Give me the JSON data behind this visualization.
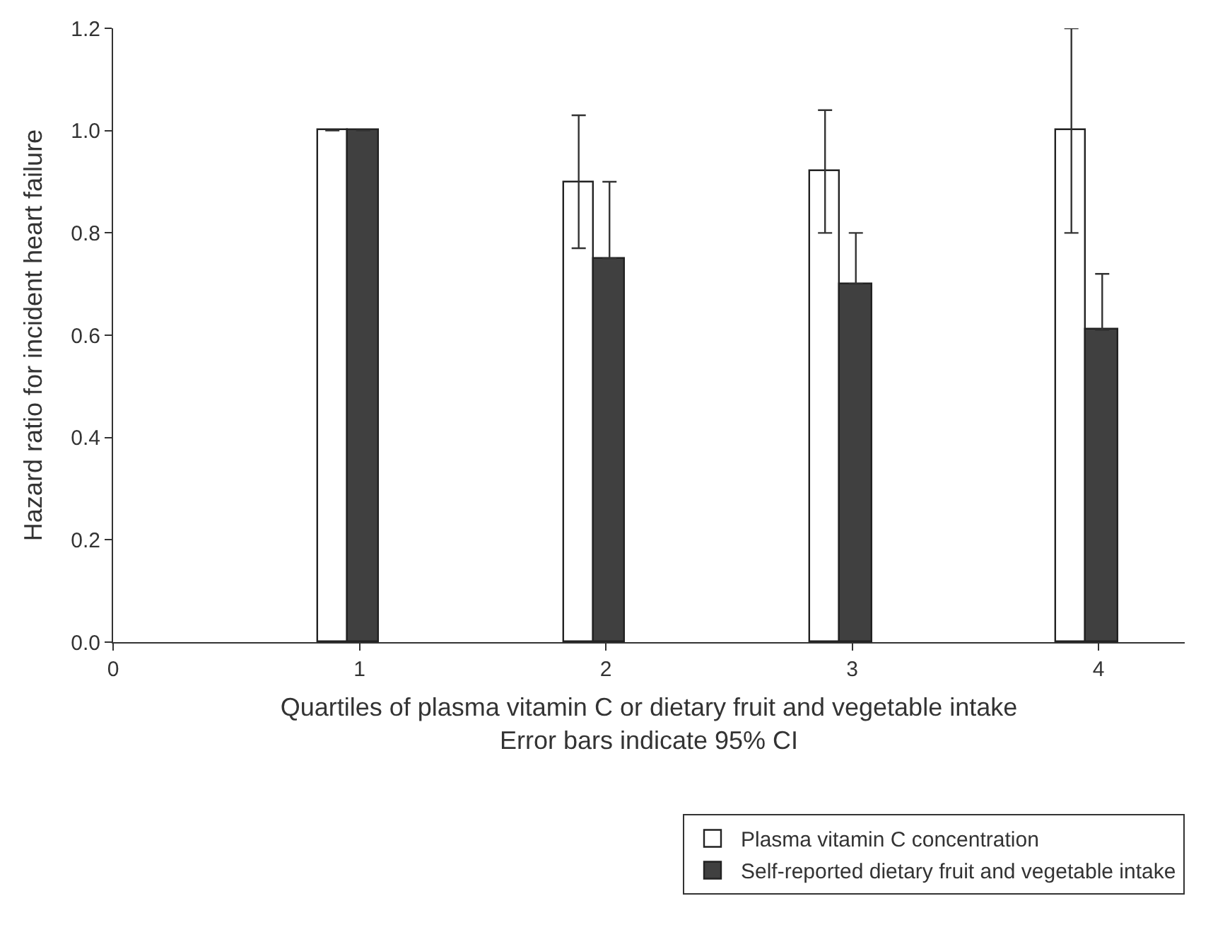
{
  "chart_data": {
    "type": "bar",
    "xlabel": "Quartiles of plasma vitamin C or dietary fruit and vegetable intake",
    "ylabel": "Hazard ratio for incident heart failure",
    "annotations": [
      "Error bars indicate 95% CI"
    ],
    "x": [
      1,
      2,
      3,
      4
    ],
    "series": [
      {
        "name": "Plasma vitamin C concentration",
        "color": "#ffffff",
        "values": [
          1.0,
          0.9,
          0.92,
          1.0
        ],
        "errors": [
          null,
          [
            0.77,
            1.03
          ],
          [
            0.8,
            1.04
          ],
          [
            0.8,
            1.2
          ]
        ]
      },
      {
        "name": "Self-reported dietary fruit and vegetable intake",
        "color": "#404040",
        "values": [
          1.0,
          0.75,
          0.7,
          0.61
        ],
        "errors": [
          null,
          [
            0.75,
            0.9
          ],
          [
            0.7,
            0.8
          ],
          [
            0.61,
            0.72
          ]
        ]
      }
    ],
    "xlim": [
      0,
      4.35
    ],
    "xticks": [
      0,
      1,
      2,
      3,
      4
    ],
    "ylim": [
      0,
      1.2
    ],
    "yticks": [
      {
        "value": 0,
        "label": "0.0"
      },
      {
        "value": 0.2,
        "label": "0.2"
      },
      {
        "value": 0.4,
        "label": "0.4"
      },
      {
        "value": 0.6,
        "label": "0.6"
      },
      {
        "value": 0.8,
        "label": "0.8"
      },
      {
        "value": 1.0,
        "label": "1.0"
      },
      {
        "value": 1.2,
        "label": "1.2"
      }
    ],
    "legend": "bottom right"
  }
}
